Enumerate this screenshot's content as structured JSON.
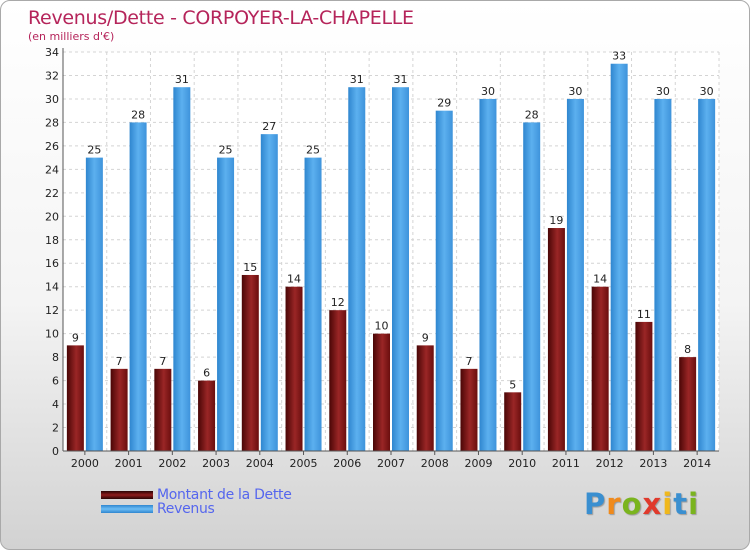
{
  "header": {
    "title": "Revenus/Dette - CORPOYER-LA-CHAPELLE",
    "subtitle": "(en milliers d'€)"
  },
  "chart_data": {
    "type": "bar",
    "categories": [
      "2000",
      "2001",
      "2002",
      "2003",
      "2004",
      "2005",
      "2006",
      "2007",
      "2008",
      "2009",
      "2010",
      "2011",
      "2012",
      "2013",
      "2014"
    ],
    "series": [
      {
        "name": "Montant de la Dette",
        "color": "#8b1a1a",
        "values": [
          9,
          7,
          7,
          6,
          15,
          14,
          12,
          10,
          9,
          7,
          5,
          19,
          14,
          11,
          8
        ]
      },
      {
        "name": "Revenus",
        "color": "#4aa3e8",
        "values": [
          25,
          28,
          31,
          25,
          27,
          25,
          31,
          31,
          29,
          30,
          28,
          30,
          33,
          30,
          30
        ]
      }
    ],
    "ylim": [
      0,
      34
    ],
    "yticks": [
      0,
      2,
      4,
      6,
      8,
      10,
      12,
      14,
      16,
      18,
      20,
      22,
      24,
      26,
      28,
      30,
      32,
      34
    ],
    "grid": true,
    "legend": "bottom-left"
  },
  "legend": {
    "items": [
      {
        "label": "Montant de la Dette",
        "color": "#7a1010"
      },
      {
        "label": "Revenus",
        "color": "#4aa3e8"
      }
    ]
  },
  "logo": {
    "letters": [
      "P",
      "r",
      "o",
      "x",
      "i",
      "t",
      "i"
    ],
    "colors": [
      "#3a8fd0",
      "#f08a1c",
      "#7ab41e",
      "#e03a2c",
      "#f0b81c",
      "#3a8fd0",
      "#7ab41e"
    ]
  }
}
